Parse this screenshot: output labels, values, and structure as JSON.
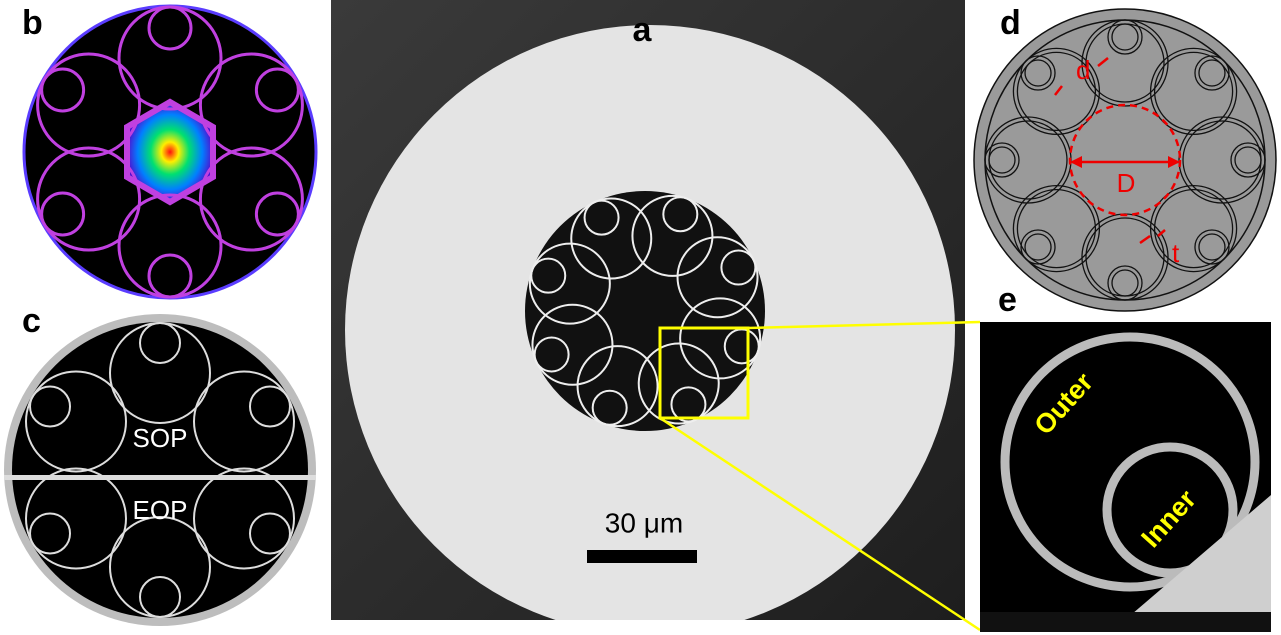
{
  "panels": [
    {
      "label": "a",
      "scale_bar": "30 μm"
    },
    {
      "label": "b"
    },
    {
      "label": "c",
      "texts": [
        "SOP",
        "EOP"
      ]
    },
    {
      "label": "d",
      "texts": [
        "d",
        "D",
        "t"
      ]
    },
    {
      "label": "e",
      "texts": [
        "Outer",
        "Inner"
      ]
    }
  ]
}
